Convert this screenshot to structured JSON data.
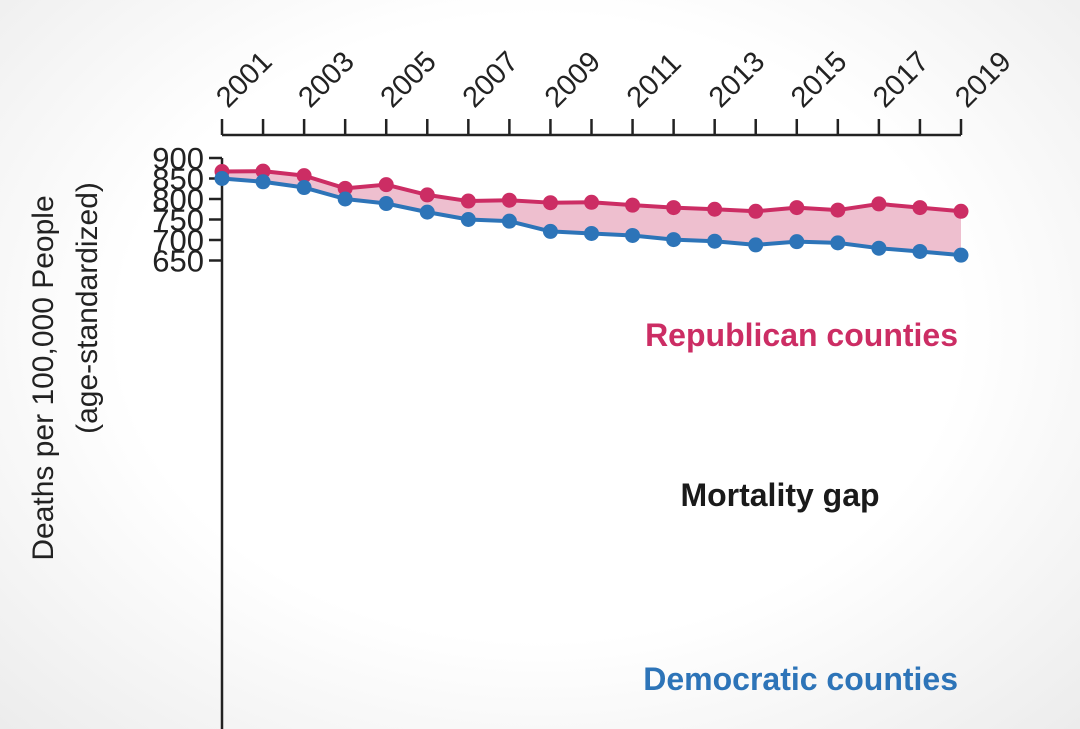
{
  "chart_data": {
    "type": "line",
    "x": [
      2001,
      2002,
      2003,
      2004,
      2005,
      2006,
      2007,
      2008,
      2009,
      2010,
      2011,
      2012,
      2013,
      2014,
      2015,
      2016,
      2017,
      2018,
      2019
    ],
    "x_tick_labels": [
      "2001",
      "2003",
      "2005",
      "2007",
      "2009",
      "2011",
      "2013",
      "2015",
      "2017",
      "2019"
    ],
    "x_tick_values": [
      2001,
      2003,
      2005,
      2007,
      2009,
      2011,
      2013,
      2015,
      2017,
      2019
    ],
    "xlim": [
      2001,
      2019
    ],
    "x_axis_position": "top",
    "ylabel_line1": "Deaths per 100,000 People",
    "ylabel_line2": "(age-standardized)",
    "y_tick_labels": [
      "900",
      "850",
      "800",
      "750",
      "700",
      "650"
    ],
    "y_tick_values": [
      900,
      850,
      800,
      750,
      700,
      650
    ],
    "ylim": [
      630,
      900
    ],
    "grid": false,
    "series": [
      {
        "name": "Republican counties",
        "color": "#cc2d64",
        "values": [
          867,
          868,
          857,
          826,
          835,
          810,
          795,
          797,
          791,
          792,
          785,
          779,
          775,
          770,
          779,
          773,
          788,
          779,
          770
        ]
      },
      {
        "name": "Democratic counties",
        "color": "#2d74b8",
        "values": [
          850,
          842,
          828,
          800,
          789,
          768,
          750,
          746,
          721,
          716,
          711,
          701,
          697,
          688,
          696,
          693,
          680,
          672,
          663
        ]
      }
    ],
    "annotation": "Mortality gap",
    "gap_fill_color": "#eebfcf"
  }
}
